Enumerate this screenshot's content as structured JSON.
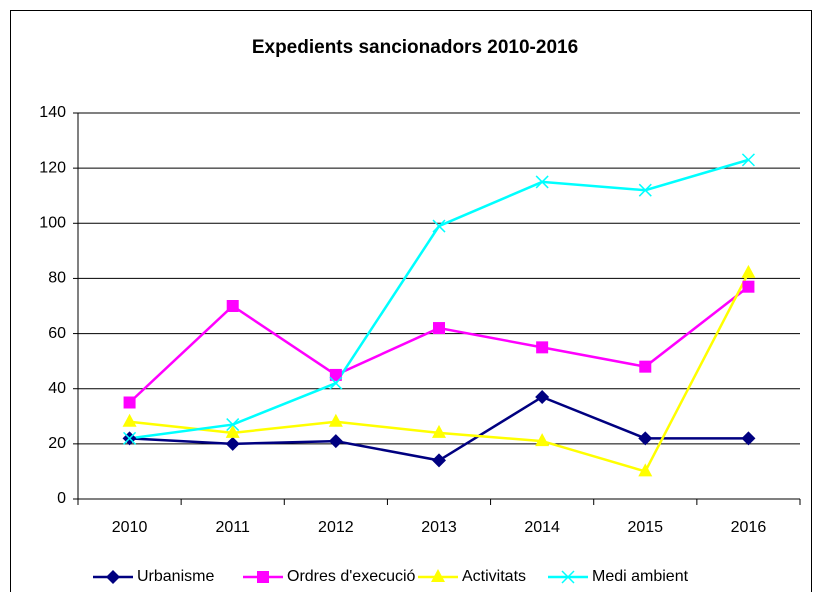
{
  "chart_data": {
    "type": "line",
    "title": "Expedients sancionadors 2010-2016",
    "categories": [
      "2010",
      "2011",
      "2012",
      "2013",
      "2014",
      "2015",
      "2016"
    ],
    "series": [
      {
        "name": "Urbanisme",
        "color": "#000080",
        "marker": "diamond",
        "values": [
          22,
          20,
          21,
          14,
          37,
          22,
          22
        ]
      },
      {
        "name": "Ordres d'execució",
        "color": "#ff00ff",
        "marker": "square",
        "values": [
          35,
          70,
          45,
          62,
          55,
          48,
          77
        ]
      },
      {
        "name": "Activitats",
        "color": "#ffff00",
        "marker": "triangle",
        "values": [
          28,
          24,
          28,
          24,
          21,
          10,
          82
        ]
      },
      {
        "name": "Medi ambient",
        "color": "#00ffff",
        "marker": "x",
        "values": [
          22,
          27,
          42,
          99,
          115,
          112,
          123
        ]
      }
    ],
    "ylim": [
      0,
      140
    ],
    "yticks": [
      0,
      20,
      40,
      60,
      80,
      100,
      120,
      140
    ],
    "grid": true,
    "legend": "bottom"
  }
}
